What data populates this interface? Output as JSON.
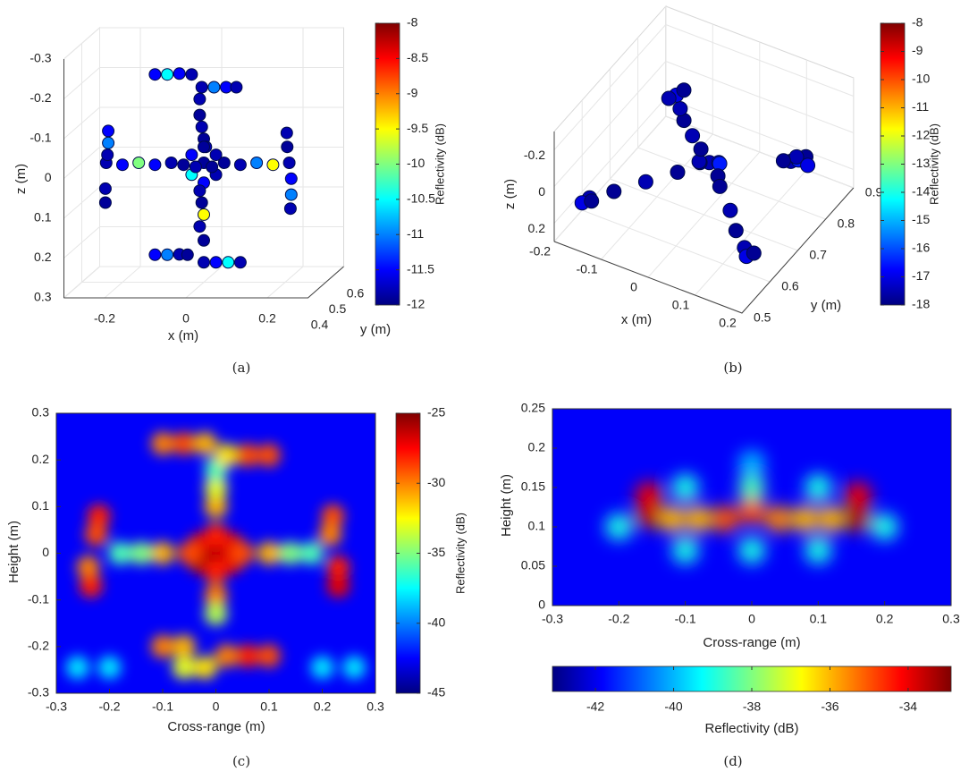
{
  "chart_data": [
    {
      "type": "scatter3d",
      "caption": "(a)",
      "xlabel": "x (m)",
      "ylabel": "y (m)",
      "zlabel": "z (m)",
      "colormap": "jet",
      "xlim": [
        -0.3,
        0.3
      ],
      "ylim": [
        0.4,
        0.6
      ],
      "zlim": [
        -0.3,
        0.3
      ],
      "xticks": [
        -0.2,
        0,
        0.2
      ],
      "yticks": [
        0.4,
        0.5,
        0.6
      ],
      "zticks": [
        -0.3,
        -0.2,
        -0.1,
        0,
        0.1,
        0.2,
        0.3
      ],
      "x": [
        -0.12,
        -0.09,
        -0.06,
        -0.03,
        -0.005,
        0.025,
        0.055,
        0.08,
        -0.01,
        -0.01,
        -0.005,
        0,
        0.005,
        -0.24,
        -0.2,
        -0.16,
        -0.12,
        -0.08,
        -0.05,
        0.05,
        0.09,
        0.13,
        0.17,
        0.21,
        0,
        -0.03,
        0.03,
        -0.03,
        0.03,
        0,
        0,
        0.02,
        -0.02,
        -0.235,
        -0.235,
        -0.237,
        -0.242,
        -0.242,
        0.204,
        0.205,
        0.215,
        0.215,
        0.213,
        -0.01,
        -0.005,
        0,
        -0.01,
        0,
        -0.12,
        -0.09,
        -0.06,
        -0.04,
        0,
        0.03,
        0.06,
        0.09
      ],
      "z": [
        -0.222,
        -0.222,
        -0.224,
        -0.222,
        -0.19,
        -0.19,
        -0.19,
        -0.19,
        -0.16,
        -0.12,
        -0.09,
        -0.06,
        -0.04,
        0,
        0.005,
        0,
        0.005,
        0,
        0.005,
        0,
        0.005,
        0,
        0.005,
        0,
        0,
        -0.02,
        -0.02,
        0.03,
        0.03,
        -0.04,
        0.05,
        0.01,
        0.01,
        -0.08,
        -0.05,
        -0.02,
        0.065,
        0.1,
        -0.075,
        -0.04,
        0.04,
        0.08,
        0.115,
        0.07,
        0.1,
        0.13,
        0.16,
        0.195,
        0.231,
        0.231,
        0.23,
        0.231,
        0.25,
        0.25,
        0.25,
        0.25
      ],
      "values": [
        -11.5,
        -10.5,
        -11.5,
        -11.8,
        -11.8,
        -11,
        -11.5,
        -11.8,
        -11.8,
        -11.9,
        -11.8,
        -11.9,
        -11.8,
        -11.8,
        -11.5,
        -10,
        -11.5,
        -11.8,
        -11.9,
        -11.9,
        -11.8,
        -11,
        -9.5,
        -11.8,
        -11.9,
        -11.5,
        -11.8,
        -10.5,
        -11.8,
        -11.9,
        -11.5,
        -11.9,
        -11.8,
        -11.5,
        -11,
        -11.8,
        -11.8,
        -11.9,
        -11.8,
        -11.9,
        -11.5,
        -11,
        -11.8,
        -11.8,
        -11.9,
        -9.5,
        -11.8,
        -11.9,
        -11.5,
        -11,
        -11.8,
        -11.9,
        -11.8,
        -11.5,
        -10.5,
        -11.8
      ],
      "colorbar": {
        "label": "Reflectivity (dB)",
        "clim": [
          -12,
          -8
        ],
        "ticks": [
          -8,
          -8.5,
          -9,
          -9.5,
          -10,
          -10.5,
          -11,
          -11.5,
          -12
        ],
        "orientation": "vertical"
      }
    },
    {
      "type": "scatter3d",
      "caption": "(b)",
      "xlabel": "x (m)",
      "ylabel": "y (m)",
      "zlabel": "z (m)",
      "colormap": "jet",
      "xlim": [
        -0.2,
        0.2
      ],
      "ylim": [
        0.5,
        0.9
      ],
      "zlim": [
        -0.3,
        0.3
      ],
      "xticks": [
        -0.2,
        -0.1,
        0,
        0.1,
        0.2
      ],
      "yticks": [
        0.5,
        0.6,
        0.7,
        0.8,
        0.9
      ],
      "zticks": [
        -0.2,
        0,
        0.2
      ],
      "x": [
        0,
        0.02,
        -0.02,
        0.01,
        -0.01,
        0.03,
        -0.03,
        -0.06,
        -0.09,
        -0.11,
        -0.13,
        -0.12,
        -0.14,
        -0.05,
        -0.1,
        -0.15,
        -0.19,
        -0.2,
        -0.18,
        0.04,
        0.08,
        0.11,
        0.14,
        0.15,
        0.16,
        0.12,
        0.13,
        0.14,
        0.12,
        0.15,
        0.11
      ],
      "y": [
        0.72,
        0.72,
        0.72,
        0.74,
        0.7,
        0.7,
        0.74,
        0.76,
        0.78,
        0.8,
        0.82,
        0.83,
        0.81,
        0.69,
        0.66,
        0.63,
        0.61,
        0.6,
        0.6,
        0.69,
        0.66,
        0.63,
        0.61,
        0.6,
        0.61,
        0.81,
        0.82,
        0.83,
        0.83,
        0.82,
        0.8
      ],
      "z": [
        0.05,
        0.03,
        0.07,
        0.08,
        0.02,
        0.06,
        0.04,
        0.03,
        0.01,
        0,
        -0.02,
        -0.04,
        -0.01,
        0.1,
        0.15,
        0.2,
        0.24,
        0.26,
        0.23,
        0.09,
        0.13,
        0.16,
        0.19,
        0.21,
        0.2,
        0.08,
        0.08,
        0.07,
        0.09,
        0.09,
        0.07
      ],
      "values": [
        -17.5,
        -17,
        -17.8,
        -16.5,
        -17.5,
        -17.8,
        -17.8,
        -17.5,
        -17.8,
        -17.5,
        -17,
        -17.8,
        -17.5,
        -17.8,
        -17.5,
        -17.8,
        -17.5,
        -17,
        -17.8,
        -17.8,
        -17.5,
        -17.8,
        -17.5,
        -17,
        -17.8,
        -17.5,
        -16.5,
        -17.8,
        -17.5,
        -17,
        -17.8
      ],
      "colorbar": {
        "label": "Reflectivity (dB)",
        "clim": [
          -18,
          -8
        ],
        "ticks": [
          -8,
          -9,
          -10,
          -11,
          -12,
          -13,
          -14,
          -15,
          -16,
          -17,
          -18
        ],
        "orientation": "vertical"
      }
    },
    {
      "type": "heatmap",
      "caption": "(c)",
      "xlabel": "Cross-range (m)",
      "ylabel": "Height (m)",
      "colormap": "jet",
      "xlim": [
        -0.3,
        0.3
      ],
      "ylim": [
        -0.3,
        0.3
      ],
      "xticks": [
        -0.3,
        -0.2,
        -0.1,
        0,
        0.1,
        0.2,
        0.3
      ],
      "yticks": [
        -0.3,
        -0.2,
        -0.1,
        0,
        0.1,
        0.2,
        0.3
      ],
      "x": [
        0,
        -0.03,
        0.03,
        -0.03,
        0.03,
        0,
        0,
        -0.05,
        0.05,
        -0.1,
        -0.14,
        -0.18,
        0.1,
        0.14,
        0.18,
        0,
        0,
        0,
        0,
        0,
        -0.1,
        -0.06,
        -0.02,
        0.02,
        0.06,
        0.1,
        -0.1,
        -0.06,
        0.02,
        0.06,
        0.1,
        -0.06,
        -0.02,
        -0.22,
        -0.225,
        -0.24,
        -0.235,
        0.22,
        0.215,
        0.23,
        0.23,
        -0.26,
        -0.2,
        0.2,
        0.26
      ],
      "y": [
        0,
        0.02,
        0.02,
        -0.02,
        -0.02,
        0.04,
        -0.04,
        0,
        0,
        0,
        0,
        0,
        0,
        0,
        0,
        0.1,
        0.14,
        0.18,
        -0.09,
        -0.13,
        0.235,
        0.235,
        0.235,
        0.21,
        0.21,
        0.21,
        -0.2,
        -0.2,
        -0.22,
        -0.22,
        -0.22,
        -0.245,
        -0.245,
        0.08,
        0.04,
        -0.03,
        -0.07,
        0.08,
        0.04,
        -0.03,
        -0.07,
        -0.245,
        -0.245,
        -0.245,
        -0.245
      ],
      "values": [
        -26,
        -27,
        -27,
        -26,
        -27,
        -28,
        -28,
        -29,
        -29,
        -31,
        -35,
        -36,
        -31,
        -35,
        -36,
        -31,
        -33,
        -36,
        -30,
        -34,
        -30,
        -29,
        -31,
        -32,
        -29,
        -29,
        -30,
        -31,
        -30,
        -28,
        -29,
        -33,
        -32,
        -28,
        -29,
        -30,
        -28,
        -29,
        -30,
        -28,
        -27,
        -38,
        -38,
        -38,
        -38
      ],
      "colorbar": {
        "label": "Reflectivity (dB)",
        "clim": [
          -45,
          -25
        ],
        "ticks": [
          -25,
          -30,
          -35,
          -40,
          -45
        ],
        "orientation": "vertical"
      }
    },
    {
      "type": "heatmap",
      "caption": "(d)",
      "xlabel": "Cross-range (m)",
      "ylabel": "Height (m)",
      "colormap": "jet",
      "xlim": [
        -0.3,
        0.3
      ],
      "ylim": [
        0,
        0.25
      ],
      "xticks": [
        -0.3,
        -0.2,
        -0.1,
        0,
        0.1,
        0.2,
        0.3
      ],
      "yticks": [
        0,
        0.05,
        0.1,
        0.15,
        0.2,
        0.25
      ],
      "x": [
        -0.155,
        -0.155,
        0.16,
        0.16,
        -0.12,
        -0.08,
        -0.04,
        0,
        0.04,
        0.08,
        0.12,
        -0.1,
        0,
        0.1,
        -0.1,
        0,
        0.1,
        0,
        -0.2,
        0.2
      ],
      "y": [
        0.115,
        0.14,
        0.11,
        0.14,
        0.11,
        0.11,
        0.11,
        0.12,
        0.11,
        0.11,
        0.11,
        0.07,
        0.07,
        0.07,
        0.15,
        0.15,
        0.15,
        0.18,
        0.1,
        0.1
      ],
      "values": [
        -33.5,
        -34,
        -33.3,
        -34,
        -36,
        -36,
        -35,
        -35,
        -35.5,
        -36,
        -36,
        -39,
        -39,
        -39,
        -39,
        -38.5,
        -39,
        -40,
        -39,
        -39
      ],
      "colorbar": {
        "label": "Reflectivity (dB)",
        "clim": [
          -43.1,
          -32.9
        ],
        "ticks": [
          -42,
          -40,
          -38,
          -36,
          -34
        ],
        "orientation": "horizontal"
      }
    }
  ]
}
